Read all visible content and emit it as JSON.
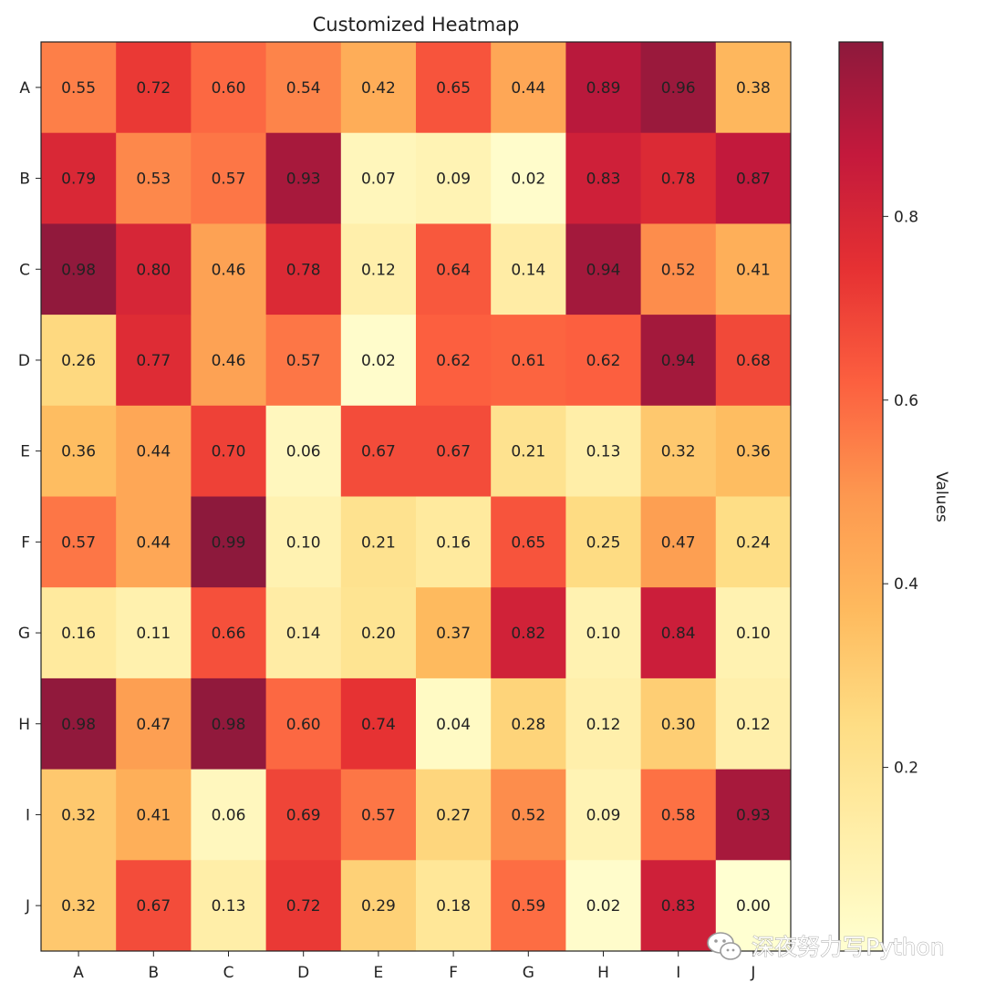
{
  "chart_data": {
    "type": "heatmap",
    "title": "Customized Heatmap",
    "x_labels": [
      "A",
      "B",
      "C",
      "D",
      "E",
      "F",
      "G",
      "H",
      "I",
      "J"
    ],
    "y_labels": [
      "A",
      "B",
      "C",
      "D",
      "E",
      "F",
      "G",
      "H",
      "I",
      "J"
    ],
    "values": [
      [
        0.55,
        0.72,
        0.6,
        0.54,
        0.42,
        0.65,
        0.44,
        0.89,
        0.96,
        0.38
      ],
      [
        0.79,
        0.53,
        0.57,
        0.93,
        0.07,
        0.09,
        0.02,
        0.83,
        0.78,
        0.87
      ],
      [
        0.98,
        0.8,
        0.46,
        0.78,
        0.12,
        0.64,
        0.14,
        0.94,
        0.52,
        0.41
      ],
      [
        0.26,
        0.77,
        0.46,
        0.57,
        0.02,
        0.62,
        0.61,
        0.62,
        0.94,
        0.68
      ],
      [
        0.36,
        0.44,
        0.7,
        0.06,
        0.67,
        0.67,
        0.21,
        0.13,
        0.32,
        0.36
      ],
      [
        0.57,
        0.44,
        0.99,
        0.1,
        0.21,
        0.16,
        0.65,
        0.25,
        0.47,
        0.24
      ],
      [
        0.16,
        0.11,
        0.66,
        0.14,
        0.2,
        0.37,
        0.82,
        0.1,
        0.84,
        0.1
      ],
      [
        0.98,
        0.47,
        0.98,
        0.6,
        0.74,
        0.04,
        0.28,
        0.12,
        0.3,
        0.12
      ],
      [
        0.32,
        0.41,
        0.06,
        0.69,
        0.57,
        0.27,
        0.52,
        0.09,
        0.58,
        0.93
      ],
      [
        0.32,
        0.67,
        0.13,
        0.72,
        0.29,
        0.18,
        0.59,
        0.02,
        0.83,
        0.0
      ]
    ],
    "value_format": "0.00",
    "colormap": "YlOrRd",
    "colormap_stops": [
      "#ffffcc",
      "#ffeda0",
      "#fed976",
      "#feb24c",
      "#fd8d3c",
      "#fc4e2a",
      "#e31a1c",
      "#bd0026",
      "#800026"
    ],
    "cell_alpha": 0.9,
    "vmin": 0.0,
    "vmax": 0.99,
    "colorbar": {
      "label": "Values",
      "ticks": [
        0.2,
        0.4,
        0.6,
        0.8
      ],
      "tick_labels": [
        "0.2",
        "0.4",
        "0.6",
        "0.8"
      ]
    },
    "grid": false
  },
  "watermark": {
    "text": "深夜努力写Python",
    "icon": "wechat-icon"
  }
}
